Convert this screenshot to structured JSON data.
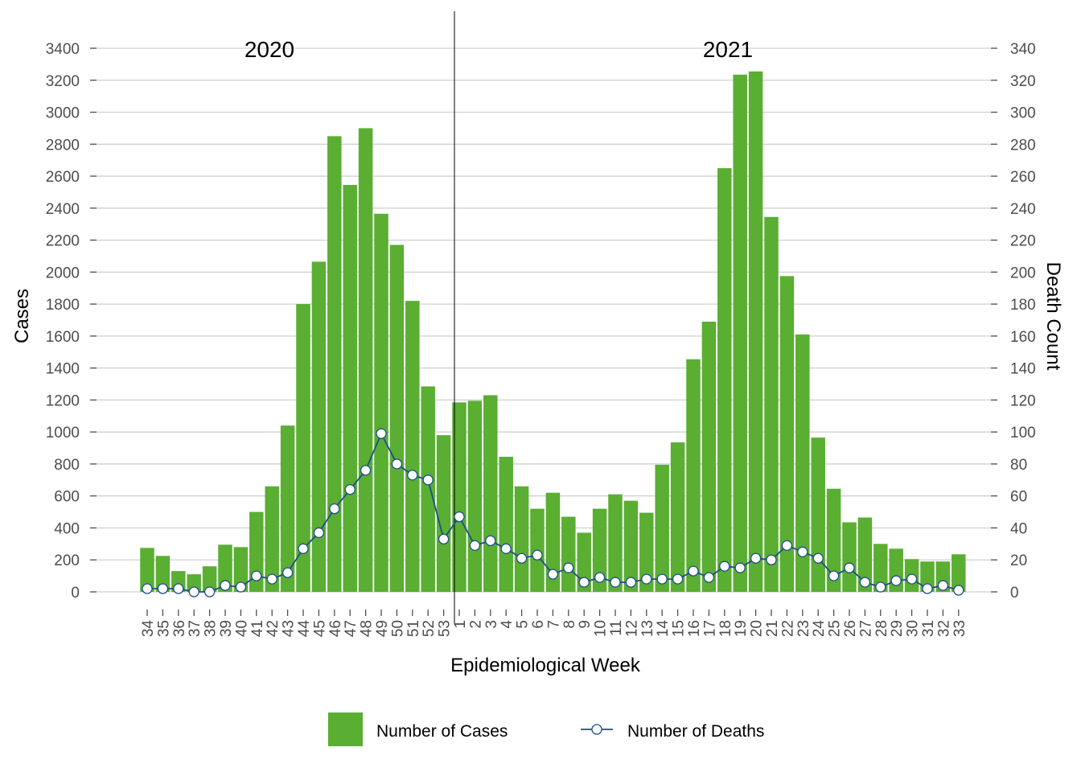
{
  "chart_data": {
    "type": "bar",
    "x_label": "Epidemiological Week",
    "y_label": "Cases",
    "y2_label": "Death Count",
    "year_labels": [
      "2020",
      "2021"
    ],
    "ylim": [
      0,
      3400
    ],
    "y2lim": [
      0,
      340
    ],
    "y_ticks": [
      "0",
      "200",
      "400",
      "600",
      "800",
      "1000",
      "1200",
      "1400",
      "1600",
      "1800",
      "2000",
      "2200",
      "2400",
      "2600",
      "2800",
      "3000",
      "3200",
      "3400"
    ],
    "y2_ticks": [
      "0",
      "20",
      "40",
      "60",
      "80",
      "100",
      "120",
      "140",
      "160",
      "180",
      "200",
      "220",
      "240",
      "260",
      "280",
      "300",
      "320",
      "340"
    ],
    "grid": "horizontal",
    "legend_position": "bottom",
    "categories": [
      "34",
      "35",
      "36",
      "37",
      "38",
      "39",
      "40",
      "41",
      "42",
      "43",
      "44",
      "45",
      "46",
      "47",
      "48",
      "49",
      "50",
      "51",
      "52",
      "53",
      "1",
      "2",
      "3",
      "4",
      "5",
      "6",
      "7",
      "8",
      "9",
      "10",
      "11",
      "12",
      "13",
      "14",
      "15",
      "16",
      "17",
      "18",
      "19",
      "20",
      "21",
      "22",
      "23",
      "24",
      "25",
      "26",
      "27",
      "28",
      "29",
      "30",
      "31",
      "32",
      "33"
    ],
    "series": [
      {
        "name": "Number of Cases",
        "type": "bar",
        "axis": "left",
        "color": "#5aae32",
        "values": [
          275,
          225,
          130,
          110,
          160,
          295,
          280,
          500,
          660,
          1040,
          1800,
          2065,
          2850,
          2545,
          2900,
          2365,
          2170,
          1820,
          1285,
          980,
          1185,
          1195,
          1230,
          845,
          660,
          520,
          620,
          470,
          370,
          520,
          610,
          570,
          495,
          795,
          935,
          1455,
          1690,
          2650,
          3235,
          3255,
          2345,
          1975,
          1610,
          965,
          645,
          435,
          465,
          300,
          270,
          205,
          190,
          190,
          235
        ]
      },
      {
        "name": "Number of Deaths",
        "type": "line",
        "axis": "right",
        "color": "#1f4e8c",
        "values": [
          2,
          2,
          2,
          0,
          0,
          4,
          3,
          10,
          8,
          12,
          27,
          37,
          52,
          64,
          76,
          99,
          80,
          73,
          70,
          33,
          47,
          29,
          32,
          27,
          21,
          23,
          11,
          15,
          6,
          9,
          6,
          6,
          8,
          8,
          8,
          13,
          9,
          16,
          15,
          21,
          20,
          29,
          25,
          21,
          10,
          15,
          6,
          3,
          7,
          8,
          2,
          4,
          1
        ]
      }
    ]
  }
}
